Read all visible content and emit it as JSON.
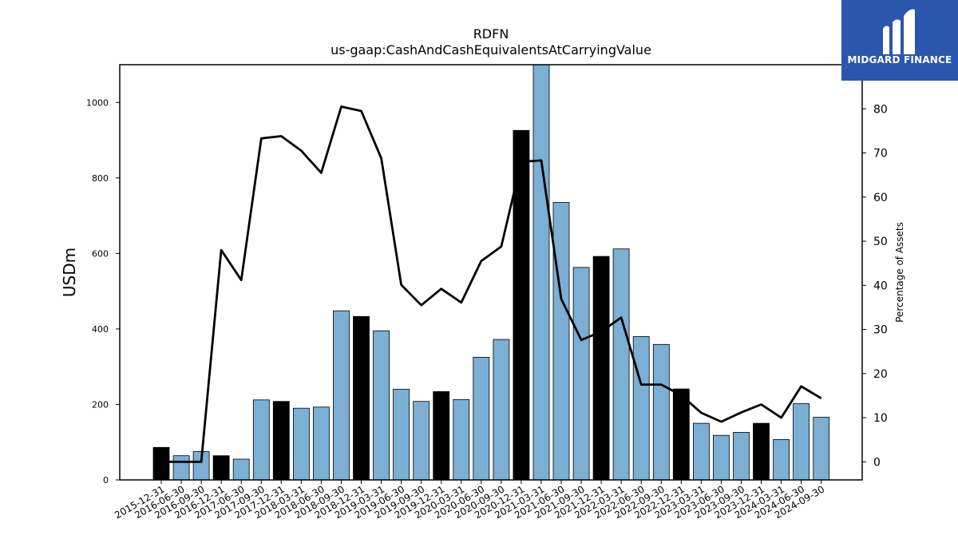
{
  "chart_data": {
    "type": "bar",
    "title": "RDFN",
    "subtitle": "us-gaap:CashAndCashEquivalentsAtCarryingValue",
    "ylabel": "USDm",
    "y2label": "Percentage of Assets",
    "ylim": [
      0,
      1100
    ],
    "y2lim": [
      -4.1,
      90
    ],
    "yticks": [
      0,
      200,
      400,
      600,
      800,
      1000
    ],
    "y2ticks": [
      0,
      10,
      20,
      30,
      40,
      50,
      60,
      70,
      80
    ],
    "categories": [
      "2015-12-31",
      "2016-06-30",
      "2016-09-30",
      "2016-12-31",
      "2017-06-30",
      "2017-09-30",
      "2017-12-31",
      "2018-03-31",
      "2018-06-30",
      "2018-09-30",
      "2018-12-31",
      "2019-03-31",
      "2019-06-30",
      "2019-09-30",
      "2019-12-31",
      "2020-03-31",
      "2020-06-30",
      "2020-09-30",
      "2020-12-31",
      "2021-03-31",
      "2021-06-30",
      "2021-09-30",
      "2021-12-31",
      "2022-03-31",
      "2022-06-30",
      "2022-09-30",
      "2022-12-31",
      "2023-03-31",
      "2023-06-30",
      "2023-09-30",
      "2023-12-31",
      "2024-03-31",
      "2024-06-30",
      "2024-09-30"
    ],
    "series": [
      {
        "type": "bar",
        "values": [
          86,
          64,
          75,
          64,
          55,
          212,
          208,
          190,
          193,
          448,
          433,
          395,
          240,
          208,
          234,
          213,
          325,
          372,
          926,
          1100,
          735,
          563,
          592,
          612,
          380,
          359,
          241,
          150,
          118,
          126,
          150,
          107,
          202,
          166
        ],
        "colors": [
          "#000000",
          "#7bafd4",
          "#7bafd4",
          "#000000",
          "#7bafd4",
          "#7bafd4",
          "#000000",
          "#7bafd4",
          "#7bafd4",
          "#7bafd4",
          "#000000",
          "#7bafd4",
          "#7bafd4",
          "#7bafd4",
          "#000000",
          "#7bafd4",
          "#7bafd4",
          "#7bafd4",
          "#000000",
          "#7bafd4",
          "#7bafd4",
          "#7bafd4",
          "#000000",
          "#7bafd4",
          "#7bafd4",
          "#7bafd4",
          "#000000",
          "#7bafd4",
          "#7bafd4",
          "#7bafd4",
          "#000000",
          "#7bafd4",
          "#7bafd4",
          "#7bafd4"
        ]
      },
      {
        "type": "line",
        "axis": "right",
        "color": "#000000",
        "values": [
          0,
          0,
          0,
          48,
          41.2,
          73.3,
          73.8,
          70.5,
          65.5,
          80.5,
          79.5,
          68.8,
          40.1,
          35.5,
          39.2,
          36.1,
          45.5,
          48.8,
          68,
          68.3,
          36.9,
          27.6,
          29.5,
          32.7,
          17.5,
          17.5,
          15.1,
          11.1,
          9.1,
          11.2,
          13,
          10,
          17.1,
          14.4
        ]
      }
    ],
    "grid": false,
    "legend": "none"
  },
  "brand": {
    "name": "MIDGARD FINANCE",
    "color": "#2a56ad",
    "icon": "midgard-logo-icon"
  }
}
